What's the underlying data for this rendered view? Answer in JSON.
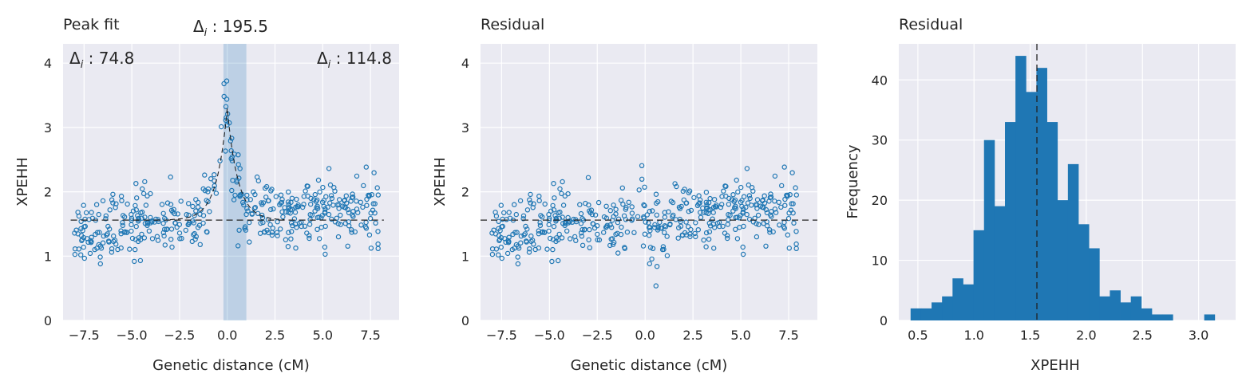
{
  "chart_data": [
    {
      "type": "scatter",
      "title": "Peak fit",
      "xlabel": "Genetic distance (cM)",
      "ylabel": "XPEHH",
      "xlim": [
        -8.6,
        9.0
      ],
      "ylim": [
        0,
        4.3
      ],
      "xticks": [
        -7.5,
        -5.0,
        -2.5,
        0.0,
        2.5,
        5.0,
        7.5
      ],
      "xtick_labels": [
        "−7.5",
        "−5.0",
        "−2.5",
        "0.0",
        "2.5",
        "5.0",
        "7.5"
      ],
      "yticks": [
        0,
        1,
        2,
        3,
        4
      ],
      "ytick_labels": [
        "0",
        "1",
        "2",
        "3",
        "4"
      ],
      "grid": true,
      "baseline": 1.56,
      "peak": {
        "center": 0.0,
        "height": 3.3
      },
      "highlight_band": [
        -0.2,
        1.0
      ],
      "annotations": [
        {
          "label": "Δ",
          "sub": "i",
          "value": " : 195.5",
          "position": "above-center"
        },
        {
          "label": "Δ",
          "sub": "i",
          "value": " : 74.8",
          "position": "top-left"
        },
        {
          "label": "Δ",
          "sub": "i",
          "value": " : 114.8",
          "position": "top-right"
        }
      ],
      "marker_color": "#1f77b4"
    },
    {
      "type": "scatter",
      "title": "Residual",
      "xlabel": "Genetic distance (cM)",
      "ylabel": "XPEHH",
      "xlim": [
        -8.6,
        9.0
      ],
      "ylim": [
        0,
        4.3
      ],
      "xticks": [
        -7.5,
        -5.0,
        -2.5,
        0.0,
        2.5,
        5.0,
        7.5
      ],
      "xtick_labels": [
        "−7.5",
        "−5.0",
        "−2.5",
        "0.0",
        "2.5",
        "5.0",
        "7.5"
      ],
      "yticks": [
        0,
        1,
        2,
        3,
        4
      ],
      "ytick_labels": [
        "0",
        "1",
        "2",
        "3",
        "4"
      ],
      "grid": true,
      "baseline": 1.56,
      "marker_color": "#1f77b4"
    },
    {
      "type": "bar",
      "title": "Residual",
      "xlabel": "XPEHH",
      "ylabel": "Frequency",
      "xlim": [
        0.33,
        3.33
      ],
      "ylim": [
        0,
        46
      ],
      "xticks": [
        0.5,
        1.0,
        1.5,
        2.0,
        2.5,
        3.0
      ],
      "xtick_labels": [
        "0.5",
        "1.0",
        "1.5",
        "2.0",
        "2.5",
        "3.0"
      ],
      "yticks": [
        0,
        10,
        20,
        30,
        40
      ],
      "ytick_labels": [
        "0",
        "10",
        "20",
        "30",
        "40"
      ],
      "grid": true,
      "vline": 1.56,
      "bin_start": 0.435,
      "bin_width": 0.0934,
      "values": [
        2,
        2,
        3,
        4,
        7,
        6,
        15,
        30,
        19,
        33,
        44,
        38,
        42,
        33,
        20,
        26,
        16,
        12,
        4,
        5,
        3,
        4,
        2,
        1,
        1,
        0,
        0,
        0,
        1
      ],
      "bar_color": "#1f77b4"
    }
  ]
}
